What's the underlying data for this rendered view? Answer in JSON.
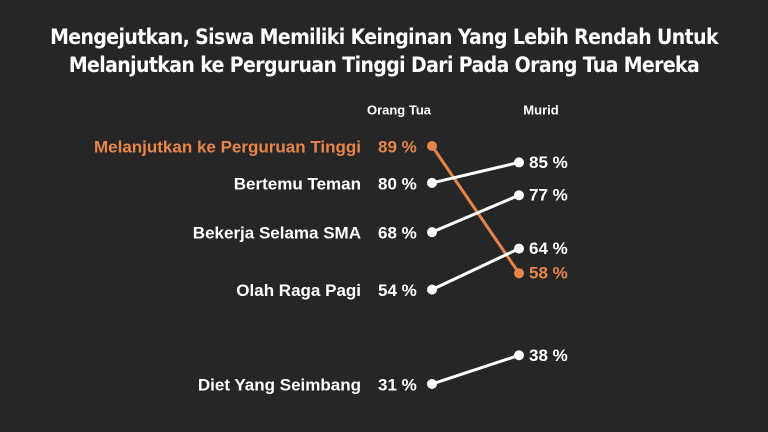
{
  "chart_data": {
    "type": "slope",
    "title": [
      "Mengejutkan, Siswa Memiliki Keinginan Yang Lebih Rendah Untuk",
      "Melanjutkan ke Perguruan Tinggi Dari Pada Orang Tua Mereka"
    ],
    "categories": [
      "Orang Tua",
      "Murid"
    ],
    "series": [
      {
        "name": "Melanjutkan ke Perguruan Tinggi",
        "color": "#e8864a",
        "values": [
          89,
          58
        ],
        "value_labels": [
          "89 %",
          "58 %"
        ]
      },
      {
        "name": "Bertemu Teman",
        "color": "#ffffff",
        "values": [
          80,
          85
        ],
        "value_labels": [
          "80 %",
          "85 %"
        ]
      },
      {
        "name": "Bekerja Selama SMA",
        "color": "#ffffff",
        "values": [
          68,
          77
        ],
        "value_labels": [
          "68 %",
          "77 %"
        ]
      },
      {
        "name": "Olah Raga Pagi",
        "color": "#ffffff",
        "values": [
          54,
          64
        ],
        "value_labels": [
          "54 %",
          "64 %"
        ]
      },
      {
        "name": "Diet Yang Seimbang",
        "color": "#ffffff",
        "values": [
          31,
          38
        ],
        "value_labels": [
          "31 %",
          "38 %"
        ]
      }
    ]
  }
}
